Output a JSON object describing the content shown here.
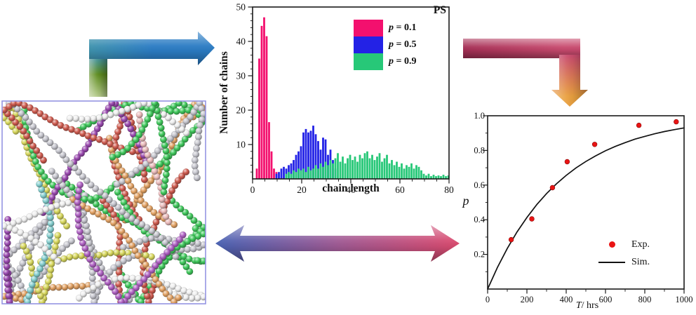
{
  "figure": {
    "kind": "scientific multi-panel figure",
    "background": "#ffffff"
  },
  "simulation_panel": {
    "label": "cross-linked polymer chain network snapshot",
    "border_color": "#9595e2",
    "bead_palette": [
      "#c6c6ce",
      "#c6c6ce",
      "#c6c6ce",
      "#efefef",
      "#efefef",
      "#41c95d",
      "#41c95d",
      "#e2a264",
      "#e2a264",
      "#cf5c50",
      "#cf5c50",
      "#ebbcbc",
      "#b062c4",
      "#d8d85e",
      "#85cfcf",
      "#9b4ab0"
    ],
    "chain_count": 34,
    "seed": 11
  },
  "chart_data": [
    {
      "id": "chain-length-histogram",
      "type": "bar",
      "title": "PS",
      "xlabel": "chain length",
      "ylabel": "Number of chains",
      "xlim": [
        0,
        80
      ],
      "ylim": [
        0,
        50
      ],
      "xticks": [
        "0",
        "20",
        "40",
        "60",
        "80"
      ],
      "yticks": [
        "10",
        "20",
        "30",
        "40",
        "50"
      ],
      "x_minor_step": 5,
      "y_minor_step": 2,
      "grid": false,
      "legend_position": "top-right",
      "series": [
        {
          "label_sym": "p",
          "label_rest": " = 0.1",
          "color": "#f3106e",
          "points": [
            [
              2,
              3
            ],
            [
              3,
              35
            ],
            [
              4,
              44.5
            ],
            [
              5,
              47
            ],
            [
              6,
              41.5
            ],
            [
              7,
              16.5
            ],
            [
              8,
              8
            ],
            [
              9,
              3
            ],
            [
              10,
              2
            ]
          ]
        },
        {
          "label_sym": "p",
          "label_rest": " = 0.5",
          "color": "#2322e6",
          "points": [
            [
              10,
              1.5
            ],
            [
              11,
              2
            ],
            [
              12,
              3
            ],
            [
              13,
              3.5
            ],
            [
              14,
              3
            ],
            [
              15,
              4
            ],
            [
              16,
              4.5
            ],
            [
              17,
              5.5
            ],
            [
              18,
              7
            ],
            [
              19,
              8
            ],
            [
              20,
              9.5
            ],
            [
              21,
              13.5
            ],
            [
              22,
              14.5
            ],
            [
              23,
              13.5
            ],
            [
              24,
              14
            ],
            [
              25,
              15.5
            ],
            [
              26,
              13
            ],
            [
              27,
              11
            ],
            [
              28,
              8.5
            ],
            [
              29,
              12
            ],
            [
              30,
              11.5
            ],
            [
              31,
              7
            ],
            [
              32,
              8.5
            ],
            [
              33,
              5.5
            ],
            [
              34,
              3
            ]
          ]
        },
        {
          "label_sym": "p",
          "label_rest": " = 0.9",
          "color": "#27c878",
          "points": [
            [
              14,
              1.5
            ],
            [
              15,
              2
            ],
            [
              16,
              1.5
            ],
            [
              17,
              2.5
            ],
            [
              18,
              2
            ],
            [
              19,
              3
            ],
            [
              20,
              2.5
            ],
            [
              21,
              3
            ],
            [
              22,
              2
            ],
            [
              23,
              3.5
            ],
            [
              24,
              2.5
            ],
            [
              25,
              3
            ],
            [
              26,
              4
            ],
            [
              27,
              3
            ],
            [
              28,
              4.5
            ],
            [
              29,
              3.5
            ],
            [
              30,
              5
            ],
            [
              31,
              4
            ],
            [
              32,
              5.5
            ],
            [
              33,
              4.5
            ],
            [
              34,
              6
            ],
            [
              35,
              7.5
            ],
            [
              36,
              5
            ],
            [
              37,
              6.5
            ],
            [
              38,
              4.5
            ],
            [
              39,
              6
            ],
            [
              40,
              7
            ],
            [
              41,
              5.5
            ],
            [
              42,
              6.5
            ],
            [
              43,
              5
            ],
            [
              44,
              7
            ],
            [
              45,
              6
            ],
            [
              46,
              7.5
            ],
            [
              47,
              8
            ],
            [
              48,
              6
            ],
            [
              49,
              7
            ],
            [
              50,
              5.5
            ],
            [
              51,
              6.5
            ],
            [
              52,
              7.5
            ],
            [
              53,
              5
            ],
            [
              54,
              6
            ],
            [
              55,
              7
            ],
            [
              56,
              4.5
            ],
            [
              57,
              5.5
            ],
            [
              58,
              4
            ],
            [
              59,
              5
            ],
            [
              60,
              3.5
            ],
            [
              61,
              4.5
            ],
            [
              62,
              3
            ],
            [
              63,
              4
            ],
            [
              64,
              3.5
            ],
            [
              65,
              4.5
            ],
            [
              66,
              3
            ],
            [
              67,
              4
            ],
            [
              68,
              3.5
            ],
            [
              69,
              2.5
            ],
            [
              70,
              1.5
            ],
            [
              71,
              1
            ],
            [
              72,
              1.5
            ],
            [
              73,
              0.8
            ],
            [
              74,
              1.2
            ],
            [
              75,
              0.8
            ],
            [
              76,
              1
            ],
            [
              77,
              0.8
            ],
            [
              78,
              1.2
            ],
            [
              79,
              0.8
            ],
            [
              80,
              1
            ]
          ]
        }
      ]
    },
    {
      "id": "conversion-vs-time",
      "type": "scatter",
      "title": "",
      "xlabel_sym": "T",
      "xlabel_rest": "/ hrs",
      "ylabel_sym": "p",
      "xlim": [
        0,
        1000
      ],
      "ylim": [
        0,
        1.0
      ],
      "xticks": [
        "0",
        "200",
        "400",
        "600",
        "800",
        "1000"
      ],
      "yticks": [
        "0.2",
        "0.4",
        "0.6",
        "0.8",
        "1.0"
      ],
      "x_minor_step": 100,
      "y_minor_step": 0.1,
      "grid": false,
      "legend_position": "bottom-right",
      "series": [
        {
          "name": "Exp.",
          "type": "scatter",
          "color": "#e91414",
          "points": [
            [
              120,
              0.285
            ],
            [
              225,
              0.405
            ],
            [
              330,
              0.585
            ],
            [
              405,
              0.735
            ],
            [
              545,
              0.835
            ],
            [
              770,
              0.945
            ],
            [
              960,
              0.965
            ]
          ]
        },
        {
          "name": "Sim.",
          "type": "line",
          "color": "#111111",
          "points": [
            [
              0,
              0
            ],
            [
              50,
              0.125
            ],
            [
              100,
              0.234
            ],
            [
              150,
              0.33
            ],
            [
              200,
              0.413
            ],
            [
              250,
              0.487
            ],
            [
              300,
              0.551
            ],
            [
              350,
              0.607
            ],
            [
              400,
              0.656
            ],
            [
              450,
              0.699
            ],
            [
              500,
              0.736
            ],
            [
              550,
              0.769
            ],
            [
              600,
              0.798
            ],
            [
              650,
              0.823
            ],
            [
              700,
              0.845
            ],
            [
              750,
              0.865
            ],
            [
              800,
              0.881
            ],
            [
              850,
              0.896
            ],
            [
              900,
              0.909
            ],
            [
              950,
              0.92
            ],
            [
              1000,
              0.93
            ]
          ]
        }
      ]
    }
  ],
  "arrows": [
    {
      "id": "sim-to-histogram",
      "direction": "right",
      "colors": [
        "#b6cc8c",
        "#5e8c1f",
        "#3f93ae",
        "#2b7cc4"
      ]
    },
    {
      "id": "histogram-to-kinetics",
      "direction": "down",
      "colors": [
        "#a63056",
        "#c84a6e",
        "#e9a03f"
      ]
    },
    {
      "id": "sim-kinetics-exchange",
      "direction": "both",
      "colors": [
        "#4a63b4",
        "#a05a94",
        "#dc4a6e"
      ]
    }
  ]
}
